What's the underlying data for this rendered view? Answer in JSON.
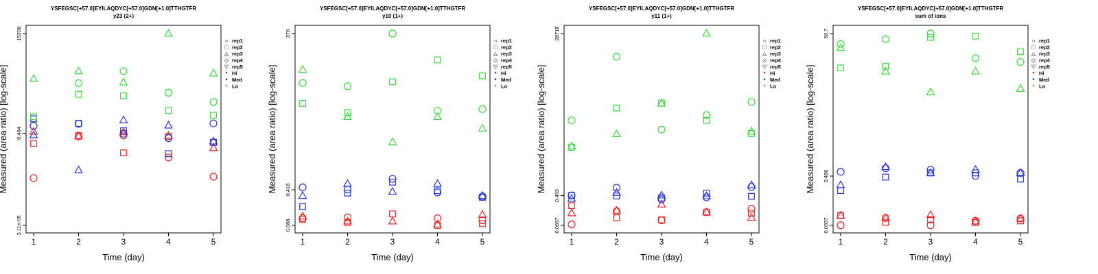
{
  "colors": {
    "Hi": "#ee2222",
    "Med": "#2233dd",
    "Lo": "#33dd33",
    "axis": "#000000"
  },
  "legend_symbols": {
    "rep1": "○",
    "rep2": "□",
    "rep3": "△",
    "rep4": "◇",
    "rep5": "▽",
    "Hi": "•",
    "Med": "•",
    "Lo": "•"
  },
  "chart_data": [
    {
      "type": "scatter",
      "title": "YSFEGSC[+57.0]EYILAQDYC[+57.0]GDN[+1.0]TTHGTFR",
      "subtitle": "y23 (2+)",
      "xlabel": "Time (day)",
      "ylabel": "Measured (area ratio) [log-scale]",
      "log_scale": true,
      "ylim": [
        3.11e-05,
        15206
      ],
      "yticks": [
        "3.11e-05",
        "0.464",
        "15206"
      ],
      "x_ticks": [
        "1",
        "2",
        "3",
        "4",
        "5"
      ],
      "legend": [
        "rep1",
        "rep2",
        "rep3",
        "rep4",
        "rep5",
        "Hi",
        "Med",
        "Lo"
      ],
      "legend_placement": "right",
      "series": [
        {
          "group": "Hi",
          "rep": "rep1",
          "x": [
            1,
            2,
            3,
            4,
            5
          ],
          "y": [
            0.0043,
            0.33,
            0.37,
            0.037,
            0.005
          ]
        },
        {
          "group": "Hi",
          "rep": "rep2",
          "x": [
            1,
            2,
            3,
            4,
            5
          ],
          "y": [
            0.16,
            0.36,
            0.06,
            0.33,
            0.18
          ]
        },
        {
          "group": "Hi",
          "rep": "rep3",
          "x": [
            1,
            2,
            3,
            4,
            5
          ],
          "y": [
            0.55,
            0.34,
            0.52,
            0.36,
            0.1
          ]
        },
        {
          "group": "Med",
          "rep": "rep1",
          "x": [
            1,
            2,
            3,
            4,
            5
          ],
          "y": [
            1.0,
            1.25,
            0.44,
            0.28,
            1.3
          ]
        },
        {
          "group": "Med",
          "rep": "rep2",
          "x": [
            1,
            2,
            3,
            4,
            5
          ],
          "y": [
            2.1,
            1.3,
            0.6,
            0.055,
            0.18
          ]
        },
        {
          "group": "Med",
          "rep": "rep3",
          "x": [
            1,
            2,
            3,
            4,
            5
          ],
          "y": [
            0.38,
            0.0099,
            1.8,
            1.05,
            0.2
          ]
        },
        {
          "group": "Lo",
          "rep": "rep1",
          "x": [
            1,
            2,
            3,
            4,
            5
          ],
          "y": [
            null,
            86,
            300,
            32,
            12
          ]
        },
        {
          "group": "Lo",
          "rep": "rep2",
          "x": [
            1,
            2,
            3,
            4,
            5
          ],
          "y": [
            2.6,
            27,
            23,
            5.0,
            3.0
          ]
        },
        {
          "group": "Lo",
          "rep": "rep3",
          "x": [
            1,
            2,
            3,
            4,
            5
          ],
          "y": [
            135,
            300,
            93,
            15206,
            240
          ]
        }
      ]
    },
    {
      "type": "scatter",
      "title": "YSFEGSC[+57.0]EYILAQDYC[+57.0]GDN[+1.0]TTHGTFR",
      "subtitle": "y10 (1+)",
      "xlabel": "Time (day)",
      "ylabel": "Measured (area ratio) [log-scale]",
      "log_scale": true,
      "ylim": [
        0.088,
        378
      ],
      "yticks": [
        "0.088",
        "0.416",
        "378"
      ],
      "x_ticks": [
        "1",
        "2",
        "3",
        "4",
        "5"
      ],
      "legend": [
        "rep1",
        "rep2",
        "rep3",
        "rep4",
        "rep5",
        "Hi",
        "Med",
        "Lo"
      ],
      "legend_placement": "right",
      "series": [
        {
          "group": "Hi",
          "rep": "rep1",
          "x": [
            1,
            2,
            3,
            4,
            5
          ],
          "y": [
            0.12,
            0.125,
            null,
            0.12,
            0.11
          ]
        },
        {
          "group": "Hi",
          "rep": "rep2",
          "x": [
            1,
            2,
            3,
            4,
            5
          ],
          "y": [
            0.115,
            0.1,
            0.145,
            0.088,
            0.095
          ]
        },
        {
          "group": "Hi",
          "rep": "rep3",
          "x": [
            1,
            2,
            3,
            4,
            5
          ],
          "y": [
            0.13,
            0.105,
            0.105,
            0.092,
            0.14
          ]
        },
        {
          "group": "Med",
          "rep": "rep1",
          "x": [
            1,
            2,
            3,
            4,
            5
          ],
          "y": [
            0.46,
            0.42,
            0.67,
            0.37,
            0.31
          ]
        },
        {
          "group": "Med",
          "rep": "rep2",
          "x": [
            1,
            2,
            3,
            4,
            5
          ],
          "y": [
            0.2,
            0.36,
            0.58,
            0.4,
            0.3
          ]
        },
        {
          "group": "Med",
          "rep": "rep3",
          "x": [
            1,
            2,
            3,
            4,
            5
          ],
          "y": [
            0.32,
            0.54,
            0.38,
            0.54,
            0.32
          ]
        },
        {
          "group": "Lo",
          "rep": "rep1",
          "x": [
            1,
            2,
            3,
            4,
            5
          ],
          "y": [
            44,
            38,
            378,
            13,
            14
          ]
        },
        {
          "group": "Lo",
          "rep": "rep2",
          "x": [
            1,
            2,
            3,
            4,
            5
          ],
          "y": [
            18,
            12,
            46,
            120,
            60
          ]
        },
        {
          "group": "Lo",
          "rep": "rep3",
          "x": [
            1,
            2,
            3,
            4,
            5
          ],
          "y": [
            78,
            10,
            3.3,
            10,
            6.0
          ]
        }
      ]
    },
    {
      "type": "scatter",
      "title": "YSFEGSC[+57.0]EYILAQDYC[+57.0]GDN[+1.0]TTHGTFR",
      "subtitle": "y11 (1+)",
      "xlabel": "Time (day)",
      "ylabel": "Measured (area ratio) [log-scale]",
      "log_scale": true,
      "ylim": [
        0.0657,
        28718
      ],
      "yticks": [
        "0.0657",
        "0.493",
        "28718"
      ],
      "x_ticks": [
        "1",
        "2",
        "3",
        "4",
        "5"
      ],
      "legend": [
        "rep1",
        "rep2",
        "rep3",
        "rep4",
        "rep5",
        "Hi",
        "Med",
        "Lo"
      ],
      "legend_placement": "right",
      "series": [
        {
          "group": "Hi",
          "rep": "rep1",
          "x": [
            1,
            2,
            3,
            4,
            5
          ],
          "y": [
            0.07,
            0.17,
            0.093,
            0.16,
            0.2
          ]
        },
        {
          "group": "Hi",
          "rep": "rep2",
          "x": [
            1,
            2,
            3,
            4,
            5
          ],
          "y": [
            0.25,
            0.11,
            0.095,
            0.16,
            0.15
          ]
        },
        {
          "group": "Hi",
          "rep": "rep3",
          "x": [
            1,
            2,
            3,
            4,
            5
          ],
          "y": [
            0.15,
            0.18,
            0.27,
            0.16,
            0.11
          ]
        },
        {
          "group": "Med",
          "rep": "rep1",
          "x": [
            1,
            2,
            3,
            4,
            5
          ],
          "y": [
            0.5,
            0.84,
            0.38,
            0.44,
            0.88
          ]
        },
        {
          "group": "Med",
          "rep": "rep2",
          "x": [
            1,
            2,
            3,
            4,
            5
          ],
          "y": [
            0.5,
            0.48,
            0.42,
            0.58,
            0.47
          ]
        },
        {
          "group": "Med",
          "rep": "rep3",
          "x": [
            1,
            2,
            3,
            4,
            5
          ],
          "y": [
            0.4,
            0.6,
            0.5,
            0.48,
            1.0
          ]
        },
        {
          "group": "Lo",
          "rep": "rep1",
          "x": [
            1,
            2,
            3,
            4,
            5
          ],
          "y": [
            80,
            6000,
            43,
            115,
            280
          ]
        },
        {
          "group": "Lo",
          "rep": "rep2",
          "x": [
            1,
            2,
            3,
            4,
            5
          ],
          "y": [
            13,
            185,
            260,
            80,
            33
          ]
        },
        {
          "group": "Lo",
          "rep": "rep3",
          "x": [
            1,
            2,
            3,
            4,
            5
          ],
          "y": [
            14,
            32,
            250,
            28718,
            38
          ]
        }
      ]
    },
    {
      "type": "scatter",
      "title": "YSFEGSC[+57.0]EYILAQDYC[+57.0]GDN[+1.0]TTHGTFR",
      "subtitle": "sum of ions",
      "xlabel": "Time (day)",
      "ylabel": "Measured (area ratio) [log-scale]",
      "log_scale": true,
      "ylim": [
        0.0937,
        56.7
      ],
      "yticks": [
        "0.0937",
        "0.486",
        "56.7"
      ],
      "x_ticks": [
        "1",
        "2",
        "3",
        "4",
        "5"
      ],
      "legend": [
        "rep1",
        "rep2",
        "rep3",
        "rep4",
        "rep5",
        "Hi",
        "Med",
        "Lo"
      ],
      "legend_placement": "right",
      "series": [
        {
          "group": "Hi",
          "rep": "rep1",
          "x": [
            1,
            2,
            3,
            4,
            5
          ],
          "y": [
            0.094,
            0.12,
            0.094,
            0.109,
            0.118
          ]
        },
        {
          "group": "Hi",
          "rep": "rep2",
          "x": [
            1,
            2,
            3,
            4,
            5
          ],
          "y": [
            0.13,
            0.104,
            0.113,
            0.103,
            0.109
          ]
        },
        {
          "group": "Hi",
          "rep": "rep3",
          "x": [
            1,
            2,
            3,
            4,
            5
          ],
          "y": [
            0.13,
            0.12,
            0.133,
            0.107,
            0.118
          ]
        },
        {
          "group": "Med",
          "rep": "rep1",
          "x": [
            1,
            2,
            3,
            4,
            5
          ],
          "y": [
            0.56,
            0.63,
            0.6,
            0.49,
            0.54
          ]
        },
        {
          "group": "Med",
          "rep": "rep2",
          "x": [
            1,
            2,
            3,
            4,
            5
          ],
          "y": [
            0.3,
            0.47,
            0.54,
            0.54,
            0.44
          ]
        },
        {
          "group": "Med",
          "rep": "rep3",
          "x": [
            1,
            2,
            3,
            4,
            5
          ],
          "y": [
            0.36,
            0.66,
            0.54,
            0.6,
            0.54
          ]
        },
        {
          "group": "Lo",
          "rep": "rep1",
          "x": [
            1,
            2,
            3,
            4,
            5
          ],
          "y": [
            40,
            47,
            56.7,
            25,
            22
          ]
        },
        {
          "group": "Lo",
          "rep": "rep2",
          "x": [
            1,
            2,
            3,
            4,
            5
          ],
          "y": [
            18,
            19,
            50,
            52,
            31
          ]
        },
        {
          "group": "Lo",
          "rep": "rep3",
          "x": [
            1,
            2,
            3,
            4,
            5
          ],
          "y": [
            35,
            16,
            8.0,
            16,
            9.0
          ]
        }
      ]
    }
  ]
}
